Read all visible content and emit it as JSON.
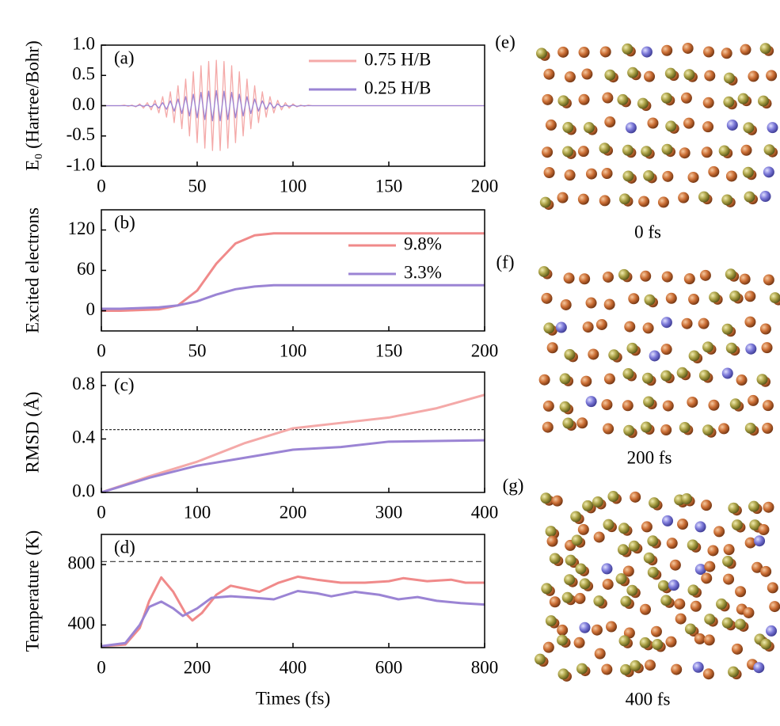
{
  "chart_data": [
    {
      "type": "line",
      "annotation": "(a)",
      "y_label": "E₀ (Hartree/Bohr)",
      "x": [
        0,
        10,
        12,
        14,
        16,
        18,
        20,
        22,
        24,
        26,
        28,
        30,
        32,
        34,
        36,
        38,
        40,
        42,
        44,
        46,
        48,
        50,
        52,
        54,
        56,
        58,
        60,
        62,
        64,
        66,
        68,
        70,
        72,
        74,
        76,
        78,
        80,
        82,
        84,
        86,
        88,
        90,
        92,
        94,
        96,
        98,
        100,
        102,
        104,
        106,
        108,
        110,
        200
      ],
      "series": [
        {
          "name": "0.75 H/B",
          "color": "#f4a9a8",
          "values": [
            0,
            0,
            0.01,
            -0.01,
            0.01,
            -0.02,
            0.03,
            -0.04,
            0.05,
            -0.07,
            0.09,
            -0.12,
            0.15,
            -0.19,
            0.23,
            -0.28,
            0.33,
            -0.38,
            0.44,
            -0.5,
            0.56,
            -0.61,
            0.66,
            -0.7,
            0.73,
            -0.74,
            0.75,
            -0.74,
            0.73,
            -0.7,
            0.66,
            -0.61,
            0.56,
            -0.5,
            0.44,
            -0.38,
            0.33,
            -0.28,
            0.23,
            -0.19,
            0.15,
            -0.12,
            0.09,
            -0.07,
            0.05,
            -0.04,
            0.03,
            -0.02,
            0.01,
            -0.01,
            0.01,
            0,
            0
          ]
        },
        {
          "name": "0.25 H/B",
          "color": "#9b84d4",
          "values": [
            0,
            0,
            0,
            0,
            0,
            -0.01,
            0.01,
            -0.01,
            0.01,
            -0.02,
            0.03,
            -0.04,
            0.05,
            -0.06,
            0.08,
            -0.09,
            0.11,
            -0.13,
            0.15,
            -0.17,
            0.19,
            -0.2,
            0.22,
            -0.23,
            0.24,
            -0.25,
            0.25,
            -0.25,
            0.24,
            -0.23,
            0.22,
            -0.2,
            0.19,
            -0.17,
            0.15,
            -0.13,
            0.11,
            -0.09,
            0.08,
            -0.06,
            0.05,
            -0.04,
            0.03,
            -0.02,
            0.01,
            -0.01,
            0.01,
            -0.01,
            0,
            0,
            0,
            0,
            0
          ]
        }
      ],
      "xlim": [
        0,
        200
      ],
      "xticks": [
        0,
        50,
        100,
        150,
        200
      ],
      "ylim": [
        -1,
        1
      ],
      "yticks": [
        {
          "value": -1,
          "label": "-1.0"
        },
        {
          "value": -0.5,
          "label": "-0.5"
        },
        {
          "value": 0,
          "label": "0.0"
        },
        {
          "value": 0.5,
          "label": "0.5"
        },
        {
          "value": 1,
          "label": "1.0"
        }
      ],
      "legend": "upper right"
    },
    {
      "type": "line",
      "annotation": "(b)",
      "y_label": "Excited electrons",
      "x": [
        0,
        10,
        20,
        30,
        40,
        50,
        60,
        70,
        80,
        90,
        100,
        110,
        120,
        130,
        140,
        150,
        160,
        170,
        180,
        190,
        200
      ],
      "series": [
        {
          "name": "9.8%",
          "color": "#f08a8a",
          "values": [
            0,
            0,
            1,
            2,
            8,
            30,
            70,
            100,
            112,
            115,
            115,
            115,
            115,
            115,
            115,
            115,
            115,
            115,
            115,
            115,
            115
          ]
        },
        {
          "name": "3.3%",
          "color": "#9b84d4",
          "values": [
            3,
            3,
            4,
            5,
            8,
            14,
            24,
            32,
            36,
            38,
            38,
            38,
            38,
            38,
            38,
            38,
            38,
            38,
            38,
            38,
            38
          ]
        }
      ],
      "xlim": [
        0,
        200
      ],
      "xticks": [
        0,
        50,
        100,
        150,
        200
      ],
      "ylim": [
        -30,
        150
      ],
      "yticks": [
        0,
        60,
        120
      ],
      "legend": "upper right"
    },
    {
      "type": "line",
      "annotation": "(c)",
      "y_label": "RMSD (Å)",
      "x": [
        0,
        50,
        100,
        150,
        200,
        250,
        300,
        350,
        400
      ],
      "series": [
        {
          "color": "#f4a9a8",
          "values": [
            0,
            0.12,
            0.23,
            0.37,
            0.48,
            0.52,
            0.56,
            0.63,
            0.73
          ]
        },
        {
          "color": "#9b84d4",
          "values": [
            0,
            0.11,
            0.2,
            0.26,
            0.32,
            0.34,
            0.38,
            0.385,
            0.39
          ]
        }
      ],
      "reference_line": 0.47,
      "xlim": [
        0,
        400
      ],
      "xticks": [
        0,
        100,
        200,
        300,
        400
      ],
      "ylim": [
        0,
        0.9
      ],
      "yticks": [
        {
          "value": 0,
          "label": "0.0"
        },
        {
          "value": 0.4,
          "label": "0.4"
        },
        {
          "value": 0.8,
          "label": "0.8"
        }
      ]
    },
    {
      "type": "line",
      "annotation": "(d)",
      "y_label": "Temperature (K)",
      "x_label": "Times (fs)",
      "series": [
        {
          "color": "#f08a8a",
          "x": [
            0,
            50,
            80,
            100,
            125,
            150,
            175,
            190,
            210,
            240,
            270,
            300,
            330,
            370,
            410,
            450,
            500,
            550,
            600,
            630,
            680,
            730,
            760,
            800
          ],
          "values": [
            260,
            270,
            380,
            560,
            715,
            620,
            480,
            430,
            480,
            600,
            660,
            640,
            620,
            680,
            720,
            700,
            680,
            680,
            690,
            710,
            690,
            700,
            680,
            680
          ]
        },
        {
          "color": "#9b84d4",
          "x": [
            0,
            50,
            80,
            100,
            125,
            150,
            170,
            200,
            230,
            270,
            320,
            360,
            410,
            450,
            480,
            530,
            580,
            620,
            660,
            700,
            750,
            800
          ],
          "values": [
            260,
            280,
            400,
            520,
            555,
            510,
            460,
            510,
            580,
            590,
            580,
            570,
            625,
            610,
            590,
            620,
            600,
            570,
            585,
            560,
            545,
            535
          ]
        }
      ],
      "reference_line": 820,
      "xlim": [
        0,
        800
      ],
      "xticks": [
        0,
        200,
        400,
        600,
        800
      ],
      "ylim": [
        250,
        1000
      ],
      "yticks": [
        400,
        800
      ]
    }
  ],
  "structure_panels": [
    {
      "label": "(e)",
      "caption": "0 fs"
    },
    {
      "label": "(f)",
      "caption": "200 fs"
    },
    {
      "label": "(g)",
      "caption": "400 fs"
    }
  ]
}
